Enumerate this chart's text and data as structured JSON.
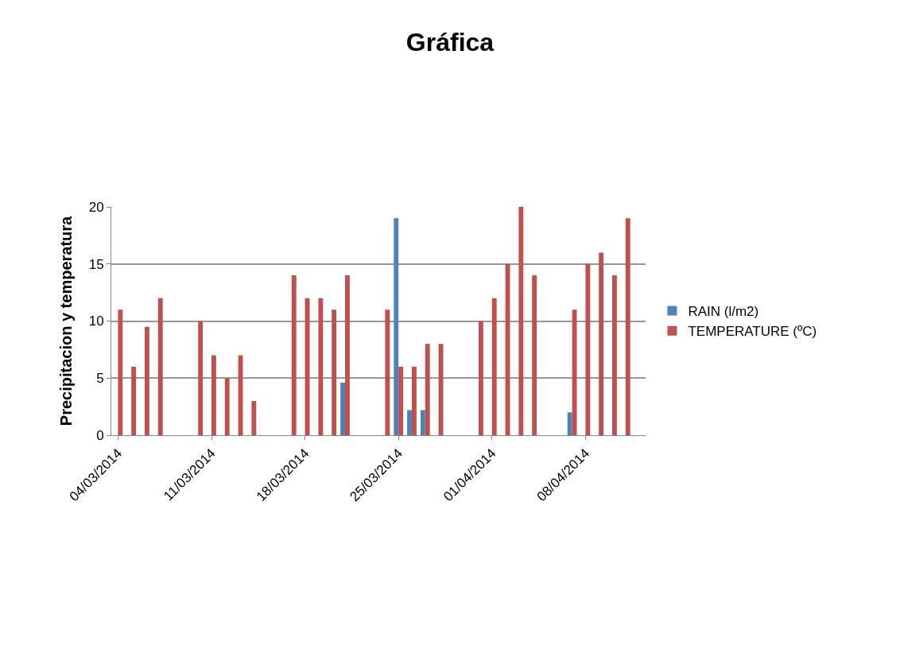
{
  "chart_data": {
    "type": "bar",
    "title": "Gráfica",
    "ylabel": "Precipitacion y temperatura",
    "x": [
      "2014-03-04",
      "2014-03-05",
      "2014-03-06",
      "2014-03-07",
      "2014-03-10",
      "2014-03-11",
      "2014-03-12",
      "2014-03-13",
      "2014-03-14",
      "2014-03-17",
      "2014-03-18",
      "2014-03-19",
      "2014-03-20",
      "2014-03-21",
      "2014-03-24",
      "2014-03-25",
      "2014-03-26",
      "2014-03-27",
      "2014-03-28",
      "2014-03-31",
      "2014-04-01",
      "2014-04-02",
      "2014-04-03",
      "2014-04-04",
      "2014-04-07",
      "2014-04-08",
      "2014-04-09",
      "2014-04-10",
      "2014-04-11"
    ],
    "series": [
      {
        "name": "RAIN (l/m2)",
        "color": "#4f81bd",
        "values": [
          0,
          0,
          0,
          0,
          0,
          0,
          0,
          0,
          0,
          0,
          0,
          0,
          0,
          4.6,
          0,
          19,
          2.2,
          2.2,
          0,
          0,
          0,
          0,
          0,
          0,
          2,
          0,
          0,
          0,
          0
        ]
      },
      {
        "name": "TEMPERATURE (ºC)",
        "color": "#c0504d",
        "values": [
          11,
          6,
          9.5,
          12,
          10,
          7,
          5,
          7,
          3,
          14,
          12,
          12,
          11,
          14,
          11,
          6,
          6,
          8,
          8,
          10,
          12,
          15,
          20,
          14,
          11,
          15,
          16,
          14,
          19
        ]
      }
    ],
    "xlim": [
      "2014-03-03T12:00",
      "2014-04-12T12:00"
    ],
    "xticks": [
      {
        "value": "2014-03-04",
        "label": "04/03/2014"
      },
      {
        "value": "2014-03-11",
        "label": "11/03/2014"
      },
      {
        "value": "2014-03-18",
        "label": "18/03/2014"
      },
      {
        "value": "2014-03-25",
        "label": "25/03/2014"
      },
      {
        "value": "2014-04-01",
        "label": "01/04/2014"
      },
      {
        "value": "2014-04-08",
        "label": "08/04/2014"
      }
    ],
    "ylim": [
      0,
      20
    ],
    "yticks": [
      0,
      5,
      10,
      15,
      20
    ],
    "grid": "y",
    "legend": "right"
  }
}
